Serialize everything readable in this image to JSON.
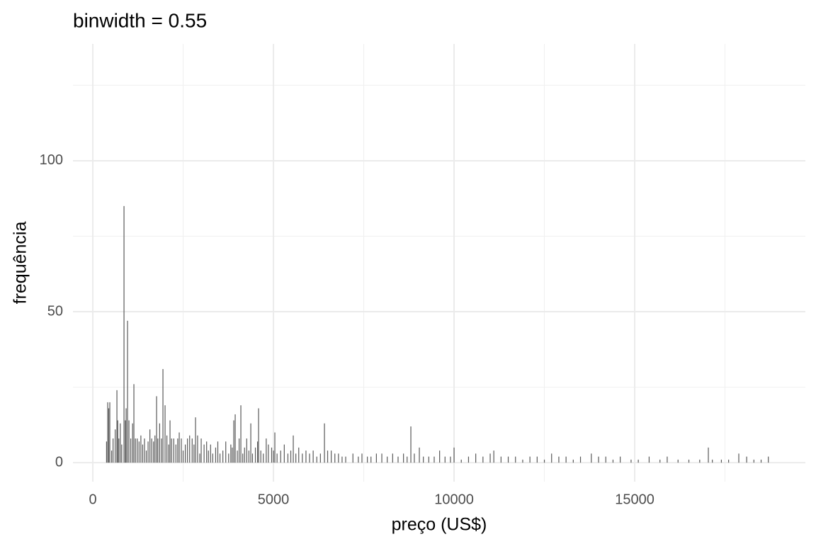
{
  "chart_data": {
    "type": "bar",
    "title": "binwidth = 0.55",
    "x_label": "preço (US$)",
    "y_label": "frequência",
    "color": "#595959",
    "x": [
      380,
      412,
      440,
      470,
      520,
      560,
      620,
      667,
      690,
      720,
      760,
      800,
      863,
      900,
      922,
      961,
      1000,
      1050,
      1100,
      1137,
      1180,
      1230,
      1280,
      1330,
      1380,
      1430,
      1480,
      1530,
      1580,
      1630,
      1680,
      1720,
      1765,
      1800,
      1850,
      1900,
      1941,
      2000,
      2050,
      2100,
      2137,
      2180,
      2240,
      2300,
      2350,
      2392,
      2450,
      2500,
      2560,
      2620,
      2680,
      2750,
      2800,
      2843,
      2900,
      2960,
      3000,
      3080,
      3150,
      3200,
      3260,
      3320,
      3400,
      3460,
      3520,
      3600,
      3680,
      3760,
      3820,
      3860,
      3902,
      3941,
      4000,
      4050,
      4098,
      4150,
      4200,
      4260,
      4320,
      4373,
      4420,
      4500,
      4560,
      4588,
      4650,
      4720,
      4800,
      4860,
      4950,
      5000,
      5039,
      5100,
      5200,
      5300,
      5400,
      5480,
      5549,
      5620,
      5700,
      5800,
      5900,
      6000,
      6100,
      6200,
      6300,
      6412,
      6500,
      6600,
      6700,
      6800,
      6900,
      7000,
      7200,
      7350,
      7450,
      7600,
      7700,
      7850,
      8000,
      8150,
      8300,
      8450,
      8600,
      8700,
      8804,
      8900,
      9039,
      9150,
      9300,
      9450,
      9600,
      9750,
      9900,
      10000,
      10200,
      10400,
      10600,
      10800,
      11000,
      11100,
      11300,
      11500,
      11700,
      11900,
      12100,
      12300,
      12500,
      12700,
      12900,
      13100,
      13300,
      13500,
      13800,
      14000,
      14200,
      14400,
      14600,
      14900,
      15100,
      15400,
      15700,
      15900,
      16200,
      16500,
      16800,
      17039,
      17150,
      17400,
      17600,
      17882,
      18100,
      18300,
      18500,
      18700
    ],
    "values": [
      7,
      20,
      18,
      20,
      4,
      8,
      11,
      24,
      14,
      8,
      13,
      6,
      85,
      14,
      18,
      47,
      14,
      8,
      13,
      26,
      8,
      8,
      7,
      9,
      6,
      8,
      4,
      7,
      11,
      8,
      7,
      9,
      22,
      8,
      13,
      8,
      31,
      19,
      9,
      6,
      14,
      8,
      8,
      6,
      8,
      10,
      8,
      4,
      6,
      8,
      9,
      8,
      6,
      15,
      9,
      3,
      8,
      6,
      7,
      4,
      6,
      3,
      5,
      7,
      3,
      4,
      7,
      3,
      6,
      5,
      14,
      16,
      4,
      8,
      19,
      3,
      5,
      8,
      4,
      13,
      3,
      5,
      7,
      18,
      4,
      3,
      8,
      6,
      5,
      4,
      10,
      3,
      4,
      6,
      3,
      4,
      9,
      3,
      5,
      3,
      4,
      3,
      4,
      2,
      3,
      13,
      4,
      4,
      3,
      3,
      2,
      2,
      3,
      2,
      3,
      2,
      2,
      3,
      3,
      2,
      3,
      2,
      3,
      2,
      12,
      3,
      5,
      2,
      2,
      2,
      4,
      2,
      2,
      5,
      1,
      2,
      3,
      2,
      3,
      4,
      2,
      2,
      2,
      1,
      2,
      2,
      1,
      3,
      2,
      2,
      1,
      2,
      3,
      2,
      2,
      1,
      2,
      1,
      1,
      2,
      1,
      2,
      1,
      1,
      1,
      5,
      1,
      1,
      1,
      3,
      2,
      1,
      1,
      2
    ],
    "xlim": [
      -550,
      19725
    ],
    "ylim": [
      -6.3,
      138.7
    ],
    "xticks": [
      0,
      5000,
      10000,
      15000
    ],
    "yticks": [
      0,
      50,
      100
    ],
    "x_minor_grid": [
      2500,
      7500,
      12500,
      17500
    ],
    "y_minor_grid": [
      25,
      75,
      125
    ],
    "grid": true
  }
}
